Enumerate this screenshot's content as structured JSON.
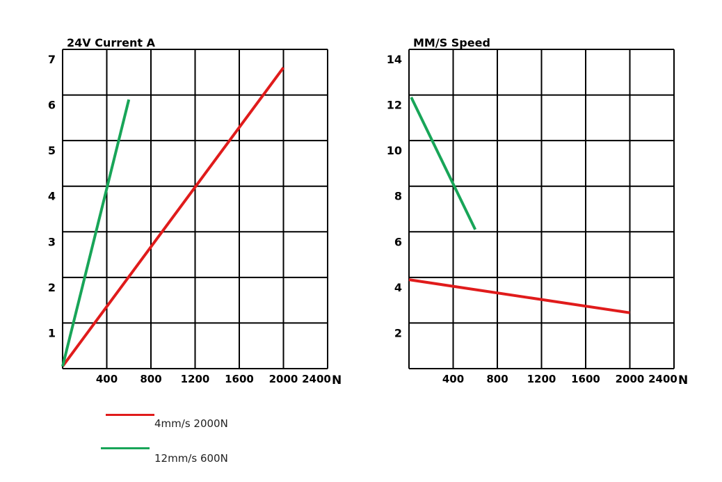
{
  "chart_data": [
    {
      "type": "line",
      "title": "24V Current A",
      "xlabel": "N",
      "ylabel": "",
      "xlim": [
        0,
        2400
      ],
      "ylim": [
        0,
        7
      ],
      "xticks": [
        "400",
        "800",
        "1200",
        "1600",
        "2000",
        "2400"
      ],
      "yticks": [
        "1",
        "2",
        "3",
        "4",
        "5",
        "6",
        "7"
      ],
      "grid": true,
      "series": [
        {
          "name": "4mm/s 2000N",
          "color": "#e01b1b",
          "x": [
            0,
            2000
          ],
          "y": [
            0.05,
            6.6
          ]
        },
        {
          "name": "12mm/s 600N",
          "color": "#18a558",
          "x": [
            0,
            600
          ],
          "y": [
            0.05,
            5.9
          ]
        }
      ]
    },
    {
      "type": "line",
      "title": "MM/S Speed",
      "xlabel": "N",
      "ylabel": "",
      "xlim": [
        0,
        2400
      ],
      "ylim": [
        0,
        14
      ],
      "xticks": [
        "400",
        "800",
        "1200",
        "1600",
        "2000",
        "2400"
      ],
      "yticks": [
        "2",
        "4",
        "6",
        "8",
        "10",
        "12",
        "14"
      ],
      "grid": true,
      "series": [
        {
          "name": "4mm/s 2000N",
          "color": "#e01b1b",
          "x": [
            0,
            2000
          ],
          "y": [
            3.9,
            2.45
          ]
        },
        {
          "name": "12mm/s 600N",
          "color": "#18a558",
          "x": [
            20,
            600
          ],
          "y": [
            11.9,
            6.1
          ]
        }
      ]
    }
  ],
  "legend": [
    {
      "label": "4mm/s 2000N",
      "color": "#e01b1b"
    },
    {
      "label": "12mm/s 600N",
      "color": "#18a558"
    }
  ]
}
